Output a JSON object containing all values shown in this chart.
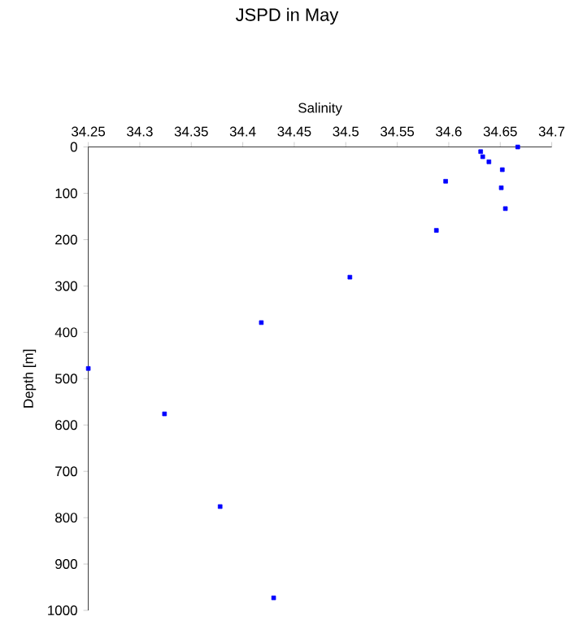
{
  "chart_data": {
    "type": "scatter",
    "title": "JSPD in May",
    "xlabel": "Salinity",
    "ylabel": "Depth [m]",
    "x": [
      34.667,
      34.631,
      34.633,
      34.639,
      34.652,
      34.597,
      34.651,
      34.655,
      34.588,
      34.504,
      34.418,
      34.25,
      34.324,
      34.378,
      34.43
    ],
    "values": [
      0,
      10,
      21,
      32,
      49,
      74,
      88,
      133,
      180,
      281,
      379,
      478,
      576,
      776,
      973
    ],
    "color": "#0000ff",
    "marker": "square",
    "xlim": [
      34.25,
      34.7
    ],
    "ylim": [
      1000,
      0
    ],
    "xticks": [
      34.25,
      34.3,
      34.35,
      34.4,
      34.45,
      34.5,
      34.55,
      34.6,
      34.65,
      34.7
    ],
    "yticks": [
      0,
      100,
      200,
      300,
      400,
      500,
      600,
      700,
      800,
      900,
      1000
    ]
  }
}
